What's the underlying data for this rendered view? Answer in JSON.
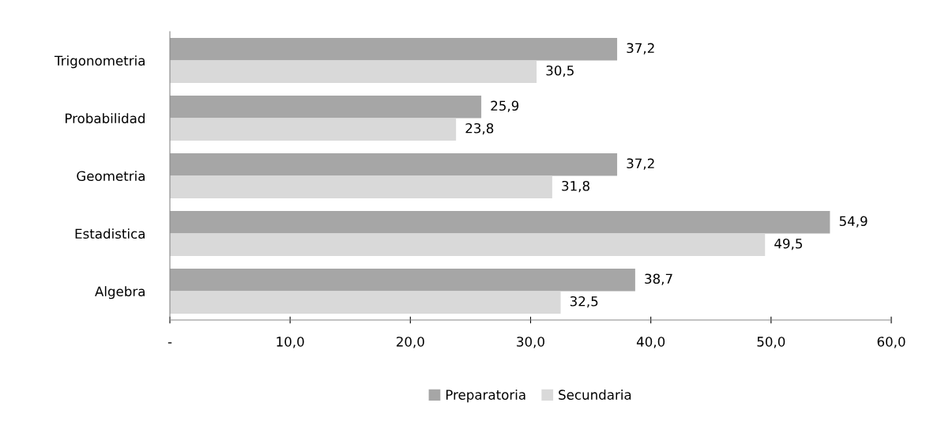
{
  "chart_data": {
    "type": "bar",
    "orientation": "horizontal",
    "categories": [
      "Trigonometria",
      "Probabilidad",
      "Geometria",
      "Estadistica",
      "Algebra"
    ],
    "series": [
      {
        "name": "Preparatoria",
        "color": "#a6a6a6",
        "values": [
          37.2,
          25.9,
          37.2,
          54.9,
          38.7
        ],
        "value_labels": [
          "37,2",
          "25,9",
          "37,2",
          "54,9",
          "38,7"
        ]
      },
      {
        "name": "Secundaria",
        "color": "#d9d9d9",
        "values": [
          30.5,
          23.8,
          31.8,
          49.5,
          32.5
        ],
        "value_labels": [
          "30,5",
          "23,8",
          "31,8",
          "49,5",
          "32,5"
        ]
      }
    ],
    "xlim": [
      0,
      60
    ],
    "xticks": [
      {
        "value": 0,
        "label": "-"
      },
      {
        "value": 10,
        "label": "10,0"
      },
      {
        "value": 20,
        "label": "20,0"
      },
      {
        "value": 30,
        "label": "30,0"
      },
      {
        "value": 40,
        "label": "40,0"
      },
      {
        "value": 50,
        "label": "50,0"
      },
      {
        "value": 60,
        "label": "60,0"
      }
    ],
    "grid": false,
    "legend": "bottom"
  }
}
